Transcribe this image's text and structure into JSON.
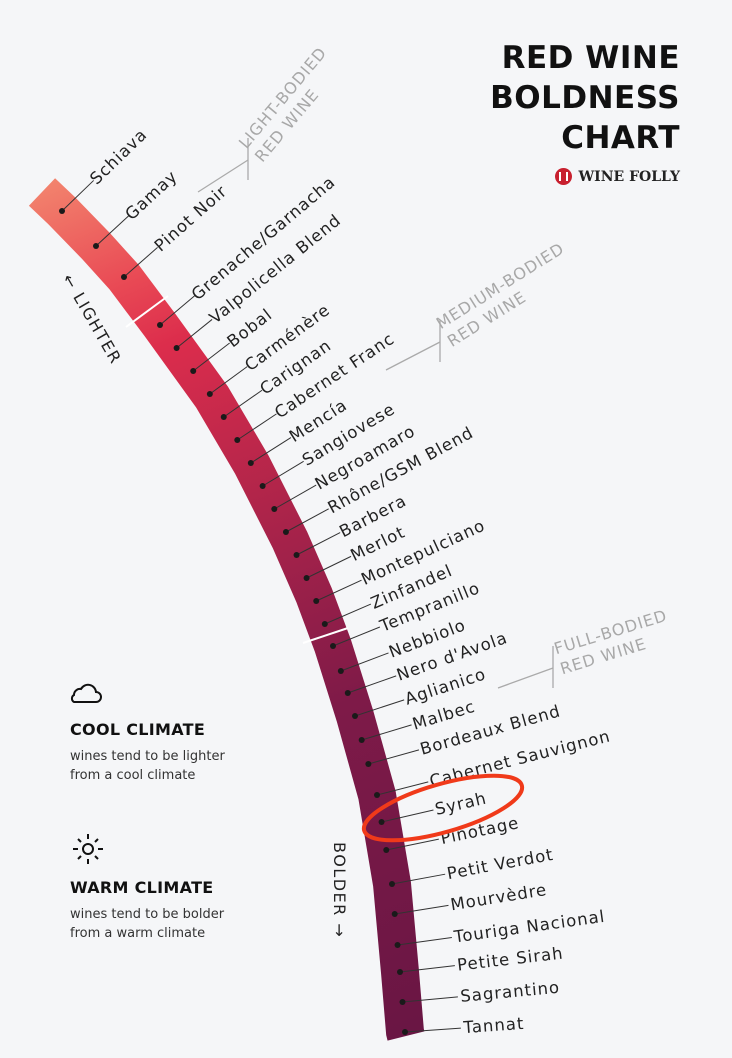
{
  "title": [
    "RED WINE",
    "BOLDNESS",
    "CHART"
  ],
  "brand": "WINE FOLLY",
  "direction": {
    "lighter": "← LIGHTER",
    "bolder": "BOLDER →"
  },
  "groups": [
    {
      "line1": "LIGHT-BODIED",
      "line2": "RED WINE"
    },
    {
      "line1": "MEDIUM-BODIED",
      "line2": "RED WINE"
    },
    {
      "line1": "FULL-BODIED",
      "line2": "RED WINE"
    }
  ],
  "wines": [
    "Schiava",
    "Gamay",
    "Pinot Noir",
    "Grenache/Garnacha",
    "Valpolicella Blend",
    "Bobal",
    "Carménère",
    "Carignan",
    "Cabernet Franc",
    "Mencía",
    "Sangiovese",
    "Negroamaro",
    "Rhône/GSM Blend",
    "Barbera",
    "Merlot",
    "Montepulciano",
    "Zinfandel",
    "Tempranillo",
    "Nebbiolo",
    "Nero d'Avola",
    "Aglianico",
    "Malbec",
    "Bordeaux Blend",
    "Cabernet Sauvignon",
    "Syrah",
    "Pinotage",
    "Petit Verdot",
    "Mourvèdre",
    "Touriga Nacional",
    "Petite Sirah",
    "Sagrantino",
    "Tannat"
  ],
  "highlighted_wine": "Syrah",
  "colors": {
    "light": "#f07e6c",
    "medium": "#d72b4a",
    "full": "#6e1746",
    "highlight": "#f03a1a"
  },
  "legend": {
    "cool": {
      "icon": "cloud-icon",
      "title": "COOL CLIMATE",
      "desc1": "wines tend to be lighter",
      "desc2": "from a cool climate"
    },
    "warm": {
      "icon": "sun-icon",
      "title": "WARM CLIMATE",
      "desc1": "wines tend to be bolder",
      "desc2": "from a warm climate"
    }
  }
}
